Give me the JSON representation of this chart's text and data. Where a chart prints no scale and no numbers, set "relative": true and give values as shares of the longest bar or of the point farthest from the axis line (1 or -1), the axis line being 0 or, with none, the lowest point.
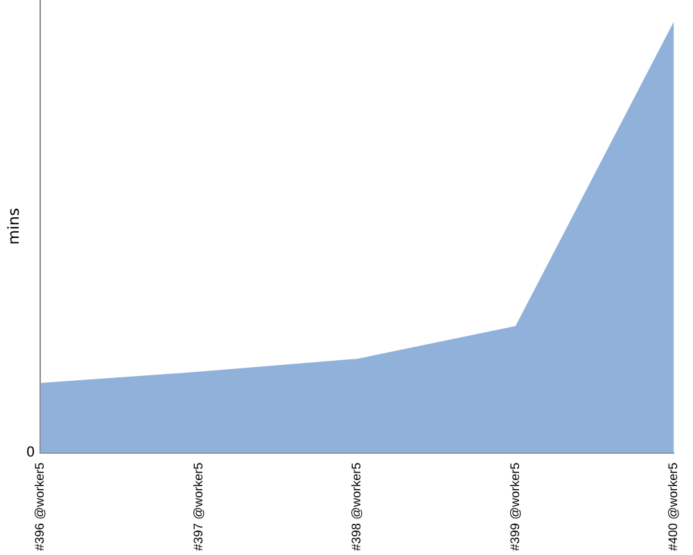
{
  "chart_data": {
    "type": "area",
    "relative": true,
    "ylabel": "mins",
    "annotations": [
      "0"
    ],
    "categories": [
      "#396 @worker5",
      "#397 @worker5",
      "#398 @worker5",
      "#399 @worker5",
      "#400 @worker5"
    ],
    "series": [
      {
        "color": "#8fb1da",
        "values": [
          0.162,
          0.188,
          0.218,
          0.294,
          1
        ]
      }
    ],
    "grid": false,
    "legend": false
  }
}
